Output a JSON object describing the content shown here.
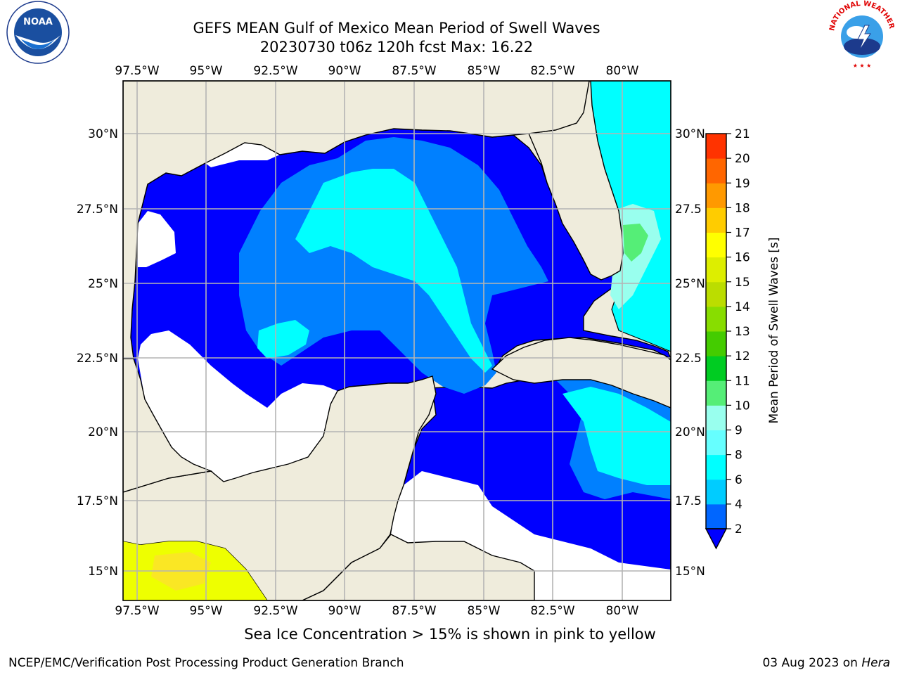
{
  "header": {
    "title": "GEFS MEAN Gulf of Mexico Mean Period of Swell Waves",
    "subtitle": "20230730 t06z 120h fcst   Max: 16.22"
  },
  "map": {
    "lon_labels": [
      "97.5°W",
      "95°W",
      "92.5°W",
      "90°W",
      "87.5°W",
      "85°W",
      "82.5°W",
      "80°W"
    ],
    "lat_labels": [
      "30°N",
      "27.5°N",
      "25°N",
      "22.5°N",
      "20°N",
      "17.5°N",
      "15°N"
    ],
    "right_lat_labels": [
      "30°N",
      "27.5",
      "25°N",
      "22.5",
      "20°N",
      "17.5",
      "15°N"
    ],
    "extent": {
      "lon_min": -98,
      "lon_max": -78.3,
      "lat_min": 14,
      "lat_max": 31.5
    },
    "colors": {
      "land": "#efecdc",
      "ocean_low": "#0000ff",
      "grid": "#b4b4b4"
    }
  },
  "colorbar": {
    "label": "Mean Period of Swell Waves [s]",
    "ticks": [
      "2",
      "4",
      "6",
      "8",
      "9",
      "10",
      "11",
      "12",
      "13",
      "14",
      "15",
      "16",
      "17",
      "18",
      "19",
      "20",
      "21"
    ],
    "colors": [
      "#0066ff",
      "#00ccff",
      "#00ffff",
      "#66ffff",
      "#99ffee",
      "#55ee77",
      "#00cc22",
      "#44cc00",
      "#88dd00",
      "#bbdd00",
      "#ddee00",
      "#ffff00",
      "#ffcc00",
      "#ff9900",
      "#ff6600",
      "#ff3300",
      "#ff0000"
    ],
    "under_color": "#0000ff"
  },
  "logos": {
    "noaa_text": "NOAA",
    "nws_text": "NATIONAL WEATHER SERVICE"
  },
  "caption": "Sea Ice Concentration > 15% is shown in pink to yellow",
  "footer": {
    "left": "NCEP/EMC/Verification Post Processing Product Generation Branch",
    "date": "03 Aug 2023 on ",
    "host": "Hera"
  }
}
